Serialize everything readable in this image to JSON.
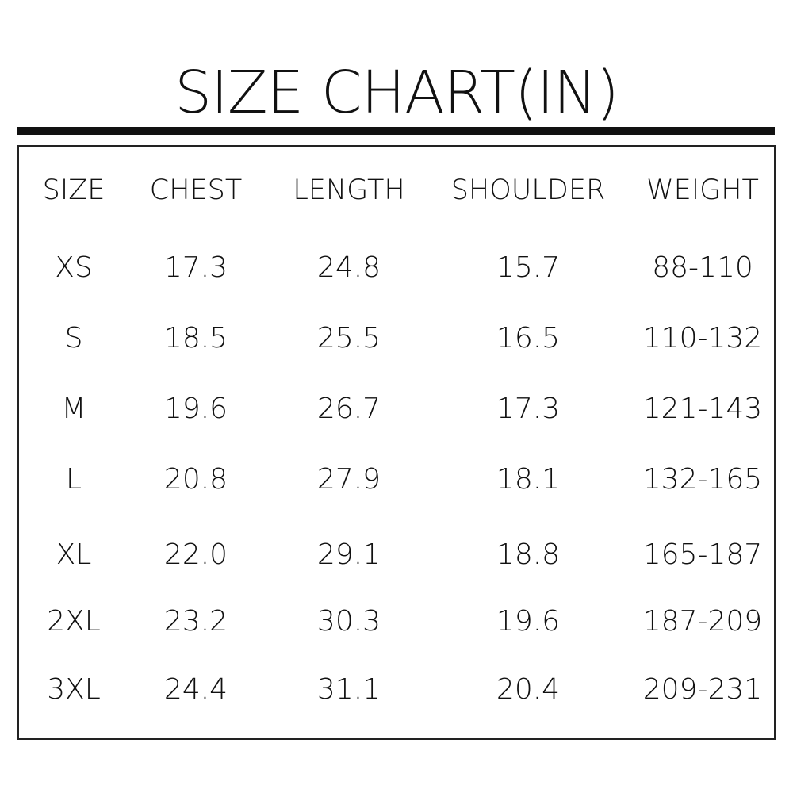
{
  "title": "SIZE CHART(IN)",
  "chart_data": {
    "type": "table",
    "title": "SIZE CHART(IN)",
    "columns": [
      "SIZE",
      "CHEST",
      "LENGTH",
      "SHOULDER",
      "WEIGHT"
    ],
    "rows": [
      [
        "XS",
        "17.3",
        "24.8",
        "15.7",
        "88-110"
      ],
      [
        "S",
        "18.5",
        "25.5",
        "16.5",
        "110-132"
      ],
      [
        "M",
        "19.6",
        "26.7",
        "17.3",
        "121-143"
      ],
      [
        "L",
        "20.8",
        "27.9",
        "18.1",
        "132-165"
      ],
      [
        "XL",
        "22.0",
        "29.1",
        "18.8",
        "165-187"
      ],
      [
        "2XL",
        "23.2",
        "30.3",
        "19.6",
        "187-209"
      ],
      [
        "3XL",
        "24.4",
        "31.1",
        "20.4",
        "209-231"
      ]
    ]
  }
}
